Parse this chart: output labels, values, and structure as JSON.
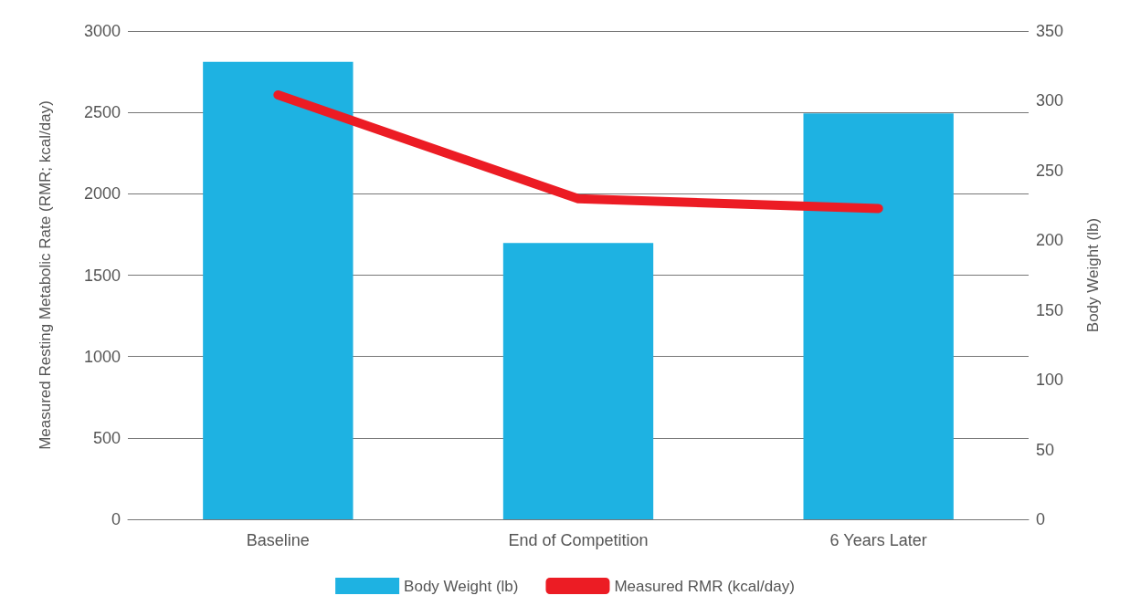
{
  "chart_data": {
    "type": "bar",
    "categories": [
      "Baseline",
      "End of Competition",
      "6 Years Later"
    ],
    "series": [
      {
        "name": "Body Weight (lb)",
        "axis": "y2",
        "color": "#1eb2e2",
        "values": [
          328,
          198,
          291
        ]
      },
      {
        "name": "Measured RMR (kcal/day)",
        "type": "line",
        "axis": "y",
        "color": "#ec1c24",
        "values": [
          2607,
          1970,
          1910
        ]
      }
    ],
    "ylabel": "Measured Resting Metabolic Rate (RMR; kcal/day)",
    "y2label": "Body Weight (lb)",
    "ylim": [
      0,
      3000
    ],
    "yticks": [
      0,
      500,
      1000,
      1500,
      2000,
      2500,
      3000
    ],
    "y2lim": [
      0,
      350
    ],
    "y2ticks": [
      0,
      50,
      100,
      150,
      200,
      250,
      300,
      350
    ],
    "grid": "y",
    "legend": "bottom",
    "line_style": "solid"
  }
}
